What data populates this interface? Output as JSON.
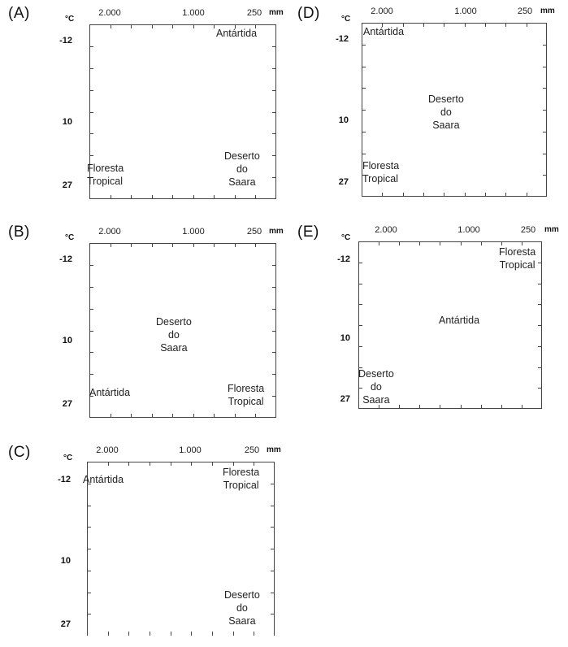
{
  "units": {
    "temperature": "°C",
    "precipitation": "mm"
  },
  "x_ticks": [
    "2.000",
    "1.000",
    "250"
  ],
  "y_ticks": [
    "-12",
    "10",
    "27"
  ],
  "panels": [
    {
      "letter": "(A)",
      "labels": {
        "antartida": "Antártida",
        "saara": "Deserto\ndo\nSaara",
        "floresta": "Floresta\nTropical"
      }
    },
    {
      "letter": "(B)",
      "labels": {
        "antartida": "Antártida",
        "saara": "Deserto\ndo\nSaara",
        "floresta": "Floresta\nTropical"
      }
    },
    {
      "letter": "(C)",
      "labels": {
        "antartida": "Antártida",
        "saara": "Deserto\ndo\nSaara",
        "floresta": "Floresta\nTropical"
      }
    },
    {
      "letter": "(D)",
      "labels": {
        "antartida": "Antártida",
        "saara": "Deserto\ndo\nSaara",
        "floresta": "Floresta\nTropical"
      }
    },
    {
      "letter": "(E)",
      "labels": {
        "antartida": "Antártida",
        "saara": "Deserto\ndo\nSaara",
        "floresta": "Floresta\nTropical"
      }
    }
  ]
}
